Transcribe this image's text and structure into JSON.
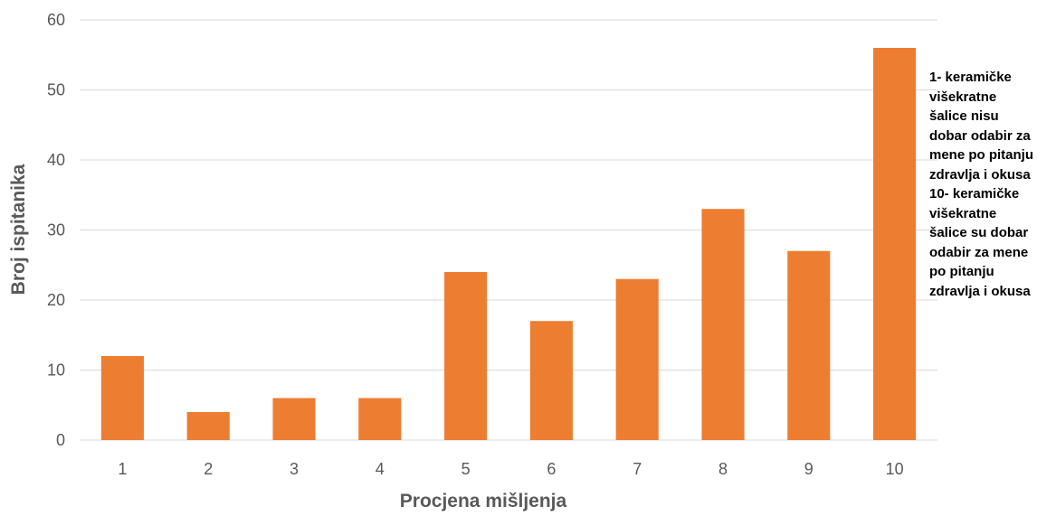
{
  "chart_data": {
    "type": "bar",
    "categories": [
      "1",
      "2",
      "3",
      "4",
      "5",
      "6",
      "7",
      "8",
      "9",
      "10"
    ],
    "values": [
      12,
      4,
      6,
      6,
      24,
      17,
      23,
      33,
      27,
      56
    ],
    "xlabel": "Procjena mišljenja",
    "ylabel": "Broj ispitanika",
    "ylim": [
      0,
      60
    ],
    "yticks": [
      "0",
      "10",
      "20",
      "30",
      "40",
      "50",
      "60"
    ],
    "grid": true,
    "legend": "none",
    "bar_color": "#ED7D31",
    "grid_color": "#D9D9D9"
  },
  "annotation": {
    "low_text": "1- keramičke višekratne šalice nisu dobar odabir za mene po pitanju zdravlja i okusa",
    "high_text": "10- keramičke višekratne šalice su dobar odabir za mene po pitanju zdravlja i okusa"
  }
}
